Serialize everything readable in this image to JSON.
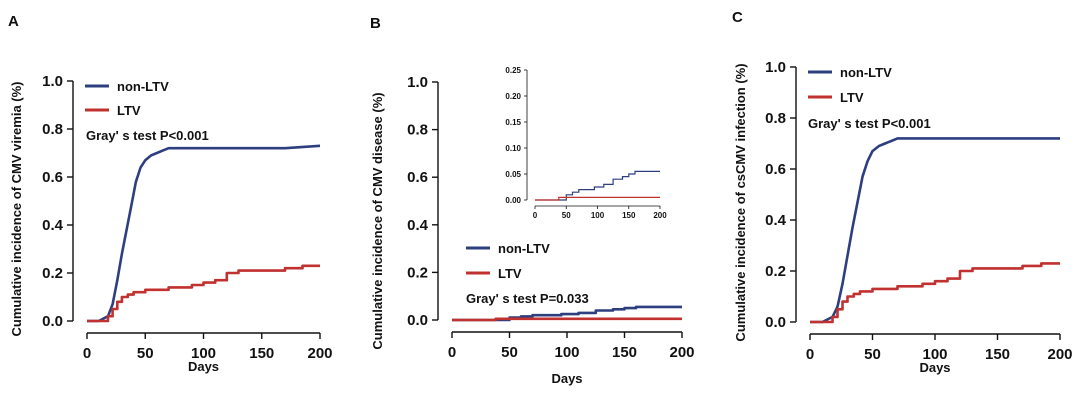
{
  "colors": {
    "non_ltv": "#2e3f80",
    "ltv": "#c1312f"
  },
  "chart_data": [
    {
      "panel": "A",
      "type": "line",
      "xlabel": "Days",
      "ylabel": "Cumulative incidence of CMV viremia  (%)",
      "xlim": [
        0,
        200
      ],
      "ylim": [
        0,
        1.0
      ],
      "xticks": [
        "0",
        "50",
        "100",
        "150",
        "200"
      ],
      "yticks": [
        "0.0",
        "0.2",
        "0.4",
        "0.6",
        "0.8",
        "1.0"
      ],
      "legend": [
        "non-LTV",
        "LTV"
      ],
      "annotation": "Gray' s test P<0.001",
      "series": [
        {
          "name": "non-LTV",
          "x": [
            0,
            10,
            18,
            22,
            26,
            30,
            34,
            38,
            42,
            46,
            50,
            55,
            60,
            65,
            70,
            75,
            80,
            100,
            150,
            170,
            200
          ],
          "y": [
            0,
            0,
            0.02,
            0.07,
            0.17,
            0.28,
            0.38,
            0.48,
            0.58,
            0.64,
            0.67,
            0.69,
            0.7,
            0.71,
            0.72,
            0.72,
            0.72,
            0.72,
            0.72,
            0.72,
            0.73
          ]
        },
        {
          "name": "LTV",
          "x": [
            0,
            10,
            18,
            22,
            26,
            30,
            35,
            40,
            50,
            60,
            70,
            80,
            90,
            100,
            110,
            120,
            130,
            150,
            170,
            185,
            200
          ],
          "y": [
            0,
            0,
            0.02,
            0.05,
            0.08,
            0.1,
            0.11,
            0.12,
            0.13,
            0.13,
            0.14,
            0.14,
            0.15,
            0.16,
            0.17,
            0.2,
            0.21,
            0.21,
            0.22,
            0.23,
            0.23
          ]
        }
      ]
    },
    {
      "panel": "B",
      "type": "line",
      "xlabel": "Days",
      "ylabel": "Cumulative incidence of CMV disease  (%)",
      "xlim": [
        0,
        200
      ],
      "ylim": [
        0,
        1.0
      ],
      "xticks": [
        "0",
        "50",
        "100",
        "150",
        "200"
      ],
      "yticks": [
        "0.0",
        "0.2",
        "0.4",
        "0.6",
        "0.8",
        "1.0"
      ],
      "legend": [
        "non-LTV",
        "LTV"
      ],
      "annotation": "Gray' s test P=0.033",
      "series": [
        {
          "name": "non-LTV",
          "x": [
            0,
            38,
            50,
            60,
            70,
            95,
            110,
            125,
            140,
            150,
            160,
            200
          ],
          "y": [
            0,
            0,
            0.01,
            0.015,
            0.02,
            0.025,
            0.03,
            0.04,
            0.045,
            0.05,
            0.055,
            0.055
          ]
        },
        {
          "name": "LTV",
          "x": [
            0,
            38,
            200
          ],
          "y": [
            0,
            0.005,
            0.005
          ]
        }
      ],
      "inset": {
        "xlim": [
          0,
          200
        ],
        "ylim": [
          0,
          0.25
        ],
        "xticks": [
          "0",
          "50",
          "100",
          "150",
          "200"
        ],
        "yticks": [
          "0.00",
          "0.05",
          "0.10",
          "0.15",
          "0.20",
          "0.25"
        ]
      }
    },
    {
      "panel": "C",
      "type": "line",
      "xlabel": "Days",
      "ylabel": "Cumulative incidence of csCMV infection  (%)",
      "xlim": [
        0,
        200
      ],
      "ylim": [
        0,
        1.0
      ],
      "xticks": [
        "0",
        "50",
        "100",
        "150",
        "200"
      ],
      "yticks": [
        "0.0",
        "0.2",
        "0.4",
        "0.6",
        "0.8",
        "1.0"
      ],
      "legend": [
        "non-LTV",
        "LTV"
      ],
      "annotation": "Gray' s test P<0.001",
      "series": [
        {
          "name": "non-LTV",
          "x": [
            0,
            10,
            18,
            22,
            26,
            30,
            34,
            38,
            42,
            46,
            50,
            55,
            60,
            65,
            70,
            75,
            80,
            100,
            150,
            170,
            200
          ],
          "y": [
            0,
            0,
            0.02,
            0.06,
            0.15,
            0.26,
            0.37,
            0.47,
            0.57,
            0.63,
            0.67,
            0.69,
            0.7,
            0.71,
            0.72,
            0.72,
            0.72,
            0.72,
            0.72,
            0.72,
            0.72
          ]
        },
        {
          "name": "LTV",
          "x": [
            0,
            10,
            18,
            22,
            26,
            30,
            35,
            40,
            50,
            60,
            70,
            80,
            90,
            100,
            110,
            120,
            130,
            150,
            170,
            185,
            200
          ],
          "y": [
            0,
            0,
            0.02,
            0.05,
            0.08,
            0.1,
            0.11,
            0.12,
            0.13,
            0.13,
            0.14,
            0.14,
            0.15,
            0.16,
            0.17,
            0.2,
            0.21,
            0.21,
            0.22,
            0.23,
            0.23
          ]
        }
      ]
    }
  ]
}
